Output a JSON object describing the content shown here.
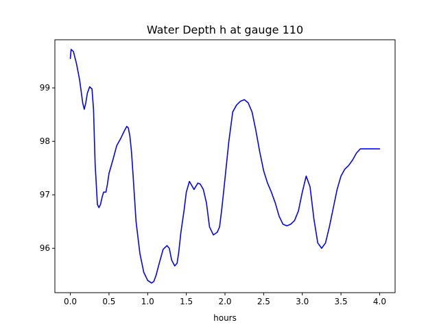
{
  "chart_data": {
    "type": "line",
    "title": "Water Depth h at gauge 110",
    "xlabel": "hours",
    "ylabel": "",
    "xlim": [
      -0.2,
      4.2
    ],
    "ylim": [
      95.17,
      99.9
    ],
    "xticks": [
      0.0,
      0.5,
      1.0,
      1.5,
      2.0,
      2.5,
      3.0,
      3.5,
      4.0
    ],
    "xtick_labels": [
      "0.0",
      "0.5",
      "1.0",
      "1.5",
      "2.0",
      "2.5",
      "3.0",
      "3.5",
      "4.0"
    ],
    "yticks": [
      96,
      97,
      98,
      99
    ],
    "ytick_labels": [
      "96",
      "97",
      "98",
      "99"
    ],
    "grid": false,
    "series": [
      {
        "color": "#0000ff",
        "x": [
          0.0,
          0.01,
          0.04,
          0.08,
          0.12,
          0.16,
          0.18,
          0.2,
          0.22,
          0.25,
          0.28,
          0.3,
          0.32,
          0.35,
          0.37,
          0.39,
          0.41,
          0.43,
          0.46,
          0.48,
          0.5,
          0.52,
          0.55,
          0.6,
          0.65,
          0.7,
          0.73,
          0.75,
          0.77,
          0.79,
          0.81,
          0.85,
          0.9,
          0.95,
          1.0,
          1.05,
          1.08,
          1.11,
          1.15,
          1.2,
          1.25,
          1.28,
          1.31,
          1.35,
          1.38,
          1.4,
          1.43,
          1.47,
          1.5,
          1.54,
          1.58,
          1.6,
          1.62,
          1.65,
          1.68,
          1.72,
          1.76,
          1.8,
          1.85,
          1.9,
          1.93,
          1.96,
          2.0,
          2.05,
          2.1,
          2.15,
          2.2,
          2.25,
          2.3,
          2.35,
          2.4,
          2.45,
          2.5,
          2.55,
          2.6,
          2.65,
          2.7,
          2.75,
          2.8,
          2.85,
          2.9,
          2.95,
          3.0,
          3.05,
          3.1,
          3.15,
          3.2,
          3.25,
          3.3,
          3.35,
          3.4,
          3.45,
          3.5,
          3.55,
          3.6,
          3.65,
          3.7,
          3.75,
          3.8,
          3.85,
          3.9,
          3.95,
          4.0
        ],
        "values": [
          99.55,
          99.72,
          99.68,
          99.45,
          99.15,
          98.72,
          98.6,
          98.72,
          98.9,
          99.02,
          98.98,
          98.6,
          97.6,
          96.82,
          96.76,
          96.82,
          96.95,
          97.05,
          97.05,
          97.2,
          97.4,
          97.5,
          97.65,
          97.92,
          98.05,
          98.2,
          98.28,
          98.25,
          98.1,
          97.82,
          97.4,
          96.5,
          95.9,
          95.55,
          95.4,
          95.35,
          95.38,
          95.5,
          95.72,
          95.98,
          96.05,
          96.0,
          95.78,
          95.67,
          95.72,
          95.9,
          96.3,
          96.7,
          97.05,
          97.25,
          97.15,
          97.1,
          97.15,
          97.22,
          97.2,
          97.1,
          96.85,
          96.4,
          96.25,
          96.3,
          96.4,
          96.75,
          97.3,
          98.0,
          98.55,
          98.68,
          98.75,
          98.78,
          98.72,
          98.55,
          98.2,
          97.8,
          97.45,
          97.22,
          97.05,
          96.85,
          96.6,
          96.45,
          96.42,
          96.45,
          96.52,
          96.7,
          97.05,
          97.35,
          97.15,
          96.55,
          96.1,
          96.0,
          96.1,
          96.4,
          96.75,
          97.1,
          97.35,
          97.48,
          97.55,
          97.65,
          97.78,
          97.86,
          97.86,
          97.86,
          97.86,
          97.86,
          97.86
        ]
      }
    ]
  }
}
